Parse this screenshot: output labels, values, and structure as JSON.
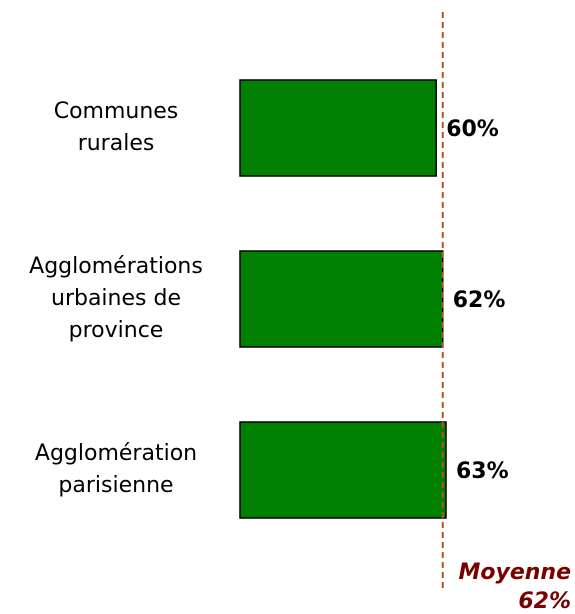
{
  "chart_data": {
    "type": "bar",
    "orientation": "horizontal",
    "categories": [
      "Communes\nrurales",
      "Agglomérations\nurbaines de\nprovince",
      "Agglomération\nparisienne"
    ],
    "values": [
      60,
      62,
      63
    ],
    "value_labels": [
      "60%",
      "62%",
      "63%"
    ],
    "color": "#008000",
    "xlim": [
      0,
      100
    ],
    "reference_line": {
      "label": "Moyenne",
      "value": 62,
      "value_label": "62%",
      "color": "#b5541c"
    }
  }
}
